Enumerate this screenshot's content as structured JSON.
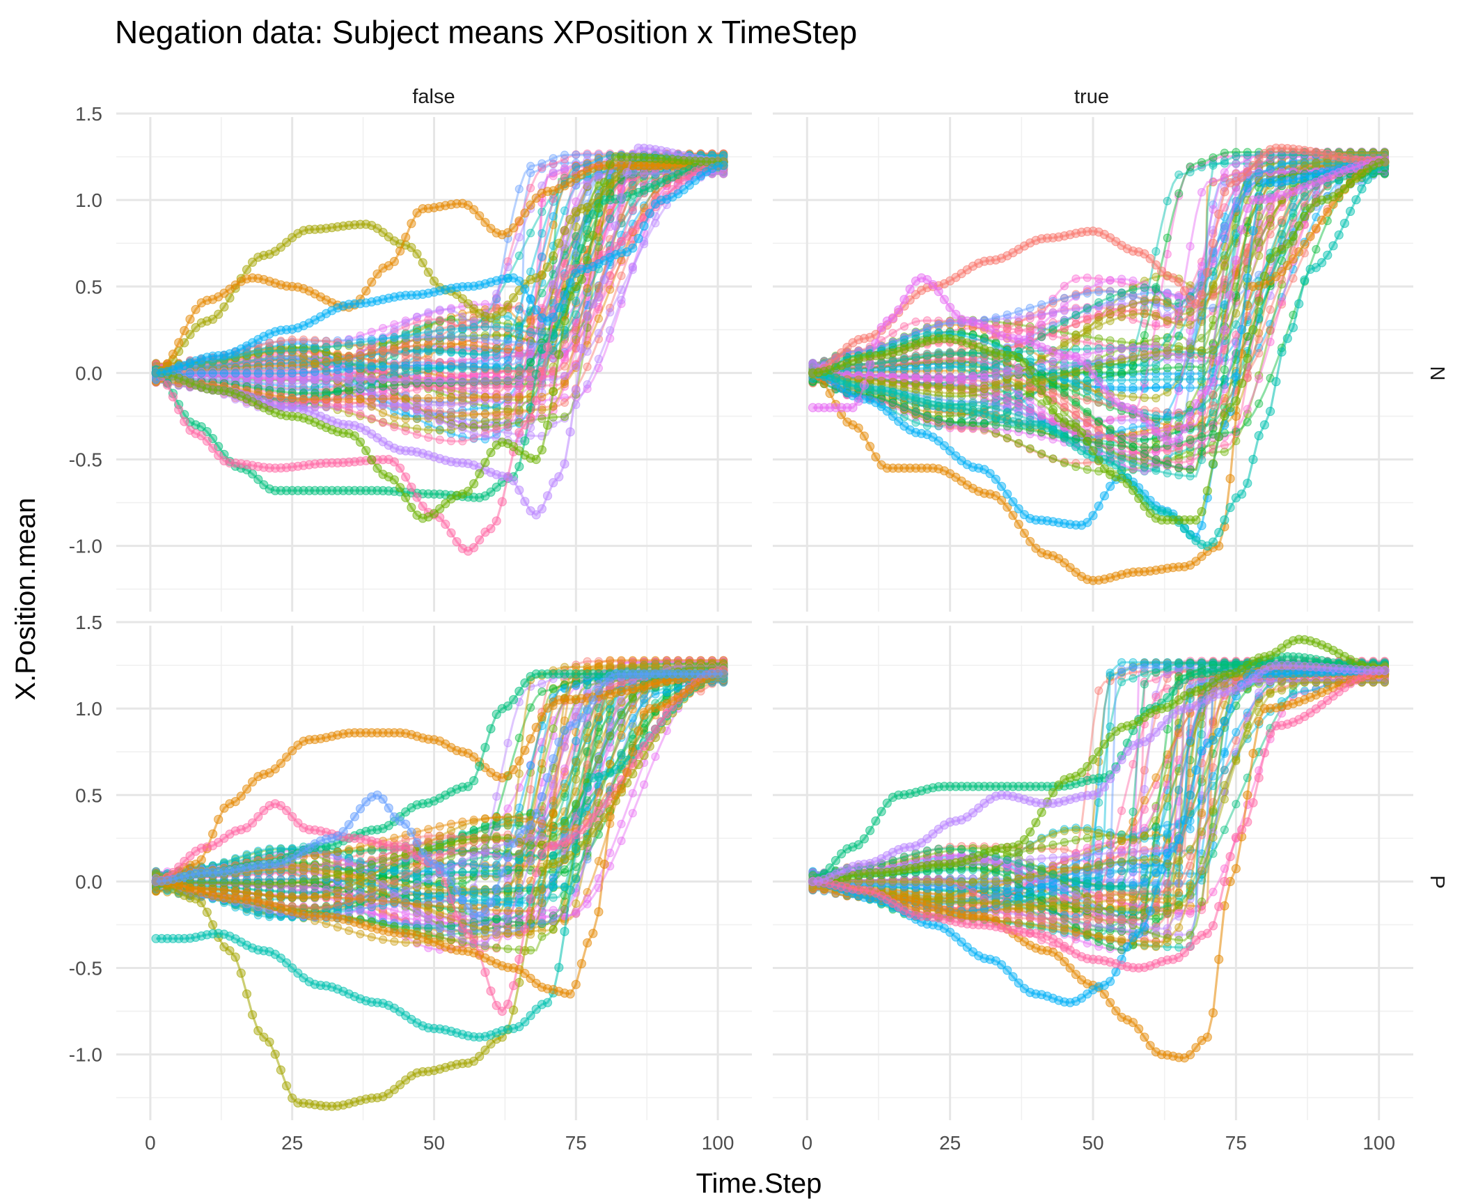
{
  "chart_data": {
    "type": "scatter",
    "title": "Negation data: Subject means XPosition x TimeStep",
    "xlabel": "Time.Step",
    "ylabel": "X.Position.mean",
    "xlim": [
      -6,
      106
    ],
    "ylim": [
      -1.38,
      1.48
    ],
    "x_ticks": [
      0,
      25,
      50,
      75,
      100
    ],
    "x_tick_labels": [
      "0",
      "25",
      "50",
      "75",
      "100"
    ],
    "y_ticks": [
      -1.0,
      -0.5,
      0.0,
      0.5,
      1.0,
      1.5
    ],
    "y_tick_labels": [
      "-1.0",
      "-0.5",
      "0.0",
      "0.5",
      "1.0",
      "1.5"
    ],
    "grid": true,
    "legend": "none",
    "facet_columns": [
      "false",
      "true"
    ],
    "facet_rows": [
      "N",
      "P"
    ],
    "series_note_count_per_panel": 60,
    "palette": [
      "#F8766D",
      "#E58700",
      "#C99800",
      "#A3A500",
      "#6BB100",
      "#00BA38",
      "#00BF7D",
      "#00C0AF",
      "#00BCD8",
      "#00B0F6",
      "#619CFF",
      "#B983FF",
      "#E76BF3",
      "#FD61D1",
      "#FF67A4"
    ],
    "panels": [
      {
        "col": "false",
        "row": "N",
        "highlight_series": [
          {
            "color": "#A3A500",
            "x": [
              1,
              10,
              20,
              28,
              38,
              45,
              52,
              60,
              68,
              76,
              85,
              101
            ],
            "y": [
              0.0,
              0.3,
              0.68,
              0.83,
              0.86,
              0.74,
              0.48,
              0.32,
              0.55,
              0.95,
              1.2,
              1.22
            ]
          },
          {
            "color": "#E58700",
            "x": [
              1,
              10,
              18,
              25,
              35,
              42,
              48,
              55,
              62,
              70,
              80,
              101
            ],
            "y": [
              0.0,
              0.42,
              0.55,
              0.5,
              0.38,
              0.62,
              0.95,
              0.98,
              0.8,
              1.05,
              1.2,
              1.2
            ]
          },
          {
            "color": "#00BF7D",
            "x": [
              1,
              8,
              16,
              22,
              30,
              40,
              50,
              58,
              64,
              70,
              80,
              101
            ],
            "y": [
              0.0,
              -0.3,
              -0.55,
              -0.68,
              -0.68,
              -0.68,
              -0.7,
              -0.72,
              -0.6,
              0.2,
              1.0,
              1.22
            ]
          },
          {
            "color": "#FF67A4",
            "x": [
              1,
              8,
              14,
              22,
              32,
              42,
              50,
              56,
              60,
              66,
              74,
              101
            ],
            "y": [
              0.0,
              -0.35,
              -0.52,
              -0.55,
              -0.52,
              -0.5,
              -0.82,
              -1.03,
              -0.9,
              -0.3,
              0.6,
              1.22
            ]
          },
          {
            "color": "#B983FF",
            "x": [
              1,
              12,
              25,
              35,
              45,
              55,
              63,
              68,
              72,
              78,
              86,
              101
            ],
            "y": [
              0.0,
              -0.1,
              -0.2,
              -0.3,
              -0.45,
              -0.52,
              -0.6,
              -0.82,
              -0.6,
              0.4,
              1.3,
              1.22
            ]
          },
          {
            "color": "#6BB100",
            "x": [
              1,
              12,
              25,
              35,
              42,
              48,
              55,
              62,
              68,
              75,
              82,
              101
            ],
            "y": [
              0.0,
              -0.1,
              -0.25,
              -0.35,
              -0.6,
              -0.84,
              -0.7,
              -0.4,
              -0.5,
              0.5,
              1.25,
              1.22
            ]
          },
          {
            "color": "#00B0F6",
            "x": [
              1,
              12,
              24,
              36,
              46,
              56,
              64,
              70,
              76,
              84,
              90,
              101
            ],
            "y": [
              0.0,
              0.1,
              0.25,
              0.4,
              0.45,
              0.5,
              0.55,
              0.3,
              0.6,
              0.7,
              1.0,
              1.2
            ]
          }
        ]
      },
      {
        "col": "true",
        "row": "N",
        "highlight_series": [
          {
            "color": "#E58700",
            "x": [
              1,
              8,
              14,
              22,
              32,
              42,
              50,
              58,
              66,
              72,
              78,
              101
            ],
            "y": [
              0.0,
              -0.3,
              -0.55,
              -0.55,
              -0.7,
              -1.05,
              -1.2,
              -1.15,
              -1.12,
              -1.0,
              0.5,
              1.22
            ]
          },
          {
            "color": "#00B0F6",
            "x": [
              1,
              10,
              20,
              30,
              40,
              48,
              55,
              63,
              68,
              73,
              80,
              101
            ],
            "y": [
              0.0,
              -0.15,
              -0.35,
              -0.55,
              -0.85,
              -0.88,
              -0.6,
              -0.8,
              -0.95,
              -0.3,
              1.1,
              1.22
            ]
          },
          {
            "color": "#00C0AF",
            "x": [
              1,
              12,
              25,
              40,
              52,
              62,
              70,
              76,
              80,
              84,
              88,
              101
            ],
            "y": [
              0.0,
              -0.1,
              -0.2,
              -0.3,
              -0.5,
              -0.8,
              -1.0,
              -0.7,
              -0.3,
              0.2,
              0.6,
              1.2
            ]
          },
          {
            "color": "#F8766D",
            "x": [
              1,
              10,
              22,
              32,
              42,
              50,
              58,
              64,
              68,
              74,
              82,
              101
            ],
            "y": [
              0.0,
              0.2,
              0.5,
              0.65,
              0.78,
              0.82,
              0.7,
              0.55,
              0.4,
              1.1,
              1.3,
              1.22
            ]
          },
          {
            "color": "#E76BF3",
            "x": [
              1,
              8,
              14,
              20,
              28,
              36,
              46,
              56,
              64,
              70,
              78,
              101
            ],
            "y": [
              -0.2,
              -0.2,
              0.3,
              0.55,
              0.3,
              0.2,
              0.1,
              -0.2,
              -0.4,
              -0.1,
              1.0,
              1.22
            ]
          },
          {
            "color": "#6BB100",
            "x": [
              1,
              12,
              24,
              36,
              46,
              54,
              62,
              68,
              74,
              82,
              90,
              101
            ],
            "y": [
              0.0,
              0.1,
              0.2,
              0.1,
              -0.3,
              -0.6,
              -0.85,
              -0.85,
              -0.2,
              0.7,
              1.0,
              1.22
            ]
          }
        ]
      },
      {
        "col": "false",
        "row": "P",
        "highlight_series": [
          {
            "color": "#A3A500",
            "x": [
              1,
              8,
              14,
              20,
              26,
              32,
              40,
              48,
              56,
              62,
              70,
              101
            ],
            "y": [
              0.0,
              -0.1,
              -0.4,
              -0.9,
              -1.28,
              -1.3,
              -1.25,
              -1.1,
              -1.05,
              -0.9,
              0.1,
              1.2
            ]
          },
          {
            "color": "#E58700",
            "x": [
              1,
              8,
              14,
              20,
              28,
              36,
              44,
              50,
              55,
              62,
              72,
              101
            ],
            "y": [
              0.0,
              0.1,
              0.45,
              0.62,
              0.82,
              0.86,
              0.86,
              0.82,
              0.75,
              0.6,
              1.05,
              1.2
            ]
          },
          {
            "color": "#00C0AF",
            "x": [
              1,
              6,
              12,
              20,
              30,
              40,
              50,
              58,
              64,
              70,
              78,
              101
            ],
            "y": [
              -0.33,
              -0.33,
              -0.3,
              -0.4,
              -0.6,
              -0.7,
              -0.85,
              -0.9,
              -0.85,
              -0.7,
              0.6,
              1.2
            ]
          },
          {
            "color": "#00BF7D",
            "x": [
              1,
              10,
              20,
              30,
              40,
              48,
              56,
              62,
              68,
              74,
              80,
              101
            ],
            "y": [
              0.0,
              0.05,
              0.1,
              0.2,
              0.3,
              0.45,
              0.55,
              1.0,
              1.2,
              1.2,
              1.2,
              1.2
            ]
          },
          {
            "color": "#FF67A4",
            "x": [
              1,
              10,
              16,
              22,
              28,
              36,
              44,
              50,
              56,
              62,
              70,
              101
            ],
            "y": [
              0.0,
              0.2,
              0.3,
              0.45,
              0.3,
              0.25,
              0.2,
              0.1,
              -0.3,
              -0.75,
              0.2,
              1.22
            ]
          },
          {
            "color": "#E58700",
            "x": [
              1,
              15,
              30,
              45,
              55,
              64,
              70,
              74,
              78,
              82,
              88,
              101
            ],
            "y": [
              0.0,
              -0.1,
              -0.2,
              -0.3,
              -0.4,
              -0.5,
              -0.62,
              -0.65,
              -0.3,
              0.5,
              1.0,
              1.2
            ]
          },
          {
            "color": "#619CFF",
            "x": [
              1,
              10,
              22,
              32,
              40,
              44,
              50,
              58,
              66,
              74,
              82,
              101
            ],
            "y": [
              0.0,
              0.05,
              0.1,
              0.25,
              0.5,
              0.35,
              0.1,
              -0.2,
              0.3,
              0.9,
              1.2,
              1.2
            ]
          }
        ]
      },
      {
        "col": "true",
        "row": "P",
        "highlight_series": [
          {
            "color": "#E58700",
            "x": [
              1,
              15,
              30,
              42,
              50,
              56,
              62,
              66,
              70,
              74,
              80,
              101
            ],
            "y": [
              0.0,
              -0.1,
              -0.2,
              -0.4,
              -0.6,
              -0.8,
              -1.0,
              -1.02,
              -0.9,
              0.0,
              1.0,
              1.2
            ]
          },
          {
            "color": "#00BF7D",
            "x": [
              1,
              8,
              16,
              24,
              34,
              44,
              52,
              60,
              68,
              76,
              84,
              101
            ],
            "y": [
              0.0,
              0.2,
              0.5,
              0.55,
              0.55,
              0.55,
              0.6,
              1.0,
              1.2,
              1.25,
              1.3,
              1.22
            ]
          },
          {
            "color": "#00B0F6",
            "x": [
              1,
              12,
              22,
              32,
              40,
              46,
              52,
              58,
              64,
              70,
              78,
              101
            ],
            "y": [
              0.0,
              -0.1,
              -0.25,
              -0.45,
              -0.65,
              -0.7,
              -0.6,
              -0.3,
              0.2,
              0.8,
              1.2,
              1.22
            ]
          },
          {
            "color": "#6BB100",
            "x": [
              1,
              12,
              24,
              36,
              46,
              56,
              62,
              68,
              74,
              80,
              86,
              101
            ],
            "y": [
              0.0,
              0.05,
              0.1,
              0.2,
              0.6,
              0.9,
              1.0,
              1.1,
              1.2,
              1.3,
              1.4,
              1.22
            ]
          },
          {
            "color": "#FF67A4",
            "x": [
              1,
              10,
              20,
              30,
              40,
              50,
              58,
              64,
              70,
              76,
              82,
              101
            ],
            "y": [
              0.0,
              -0.05,
              -0.2,
              -0.25,
              -0.3,
              -0.45,
              -0.5,
              -0.45,
              -0.3,
              0.3,
              0.9,
              1.22
            ]
          },
          {
            "color": "#B983FF",
            "x": [
              1,
              10,
              18,
              26,
              34,
              42,
              50,
              58,
              66,
              74,
              82,
              101
            ],
            "y": [
              0.0,
              0.1,
              0.2,
              0.35,
              0.5,
              0.45,
              0.5,
              0.8,
              1.0,
              1.1,
              1.25,
              1.22
            ]
          }
        ]
      }
    ]
  }
}
